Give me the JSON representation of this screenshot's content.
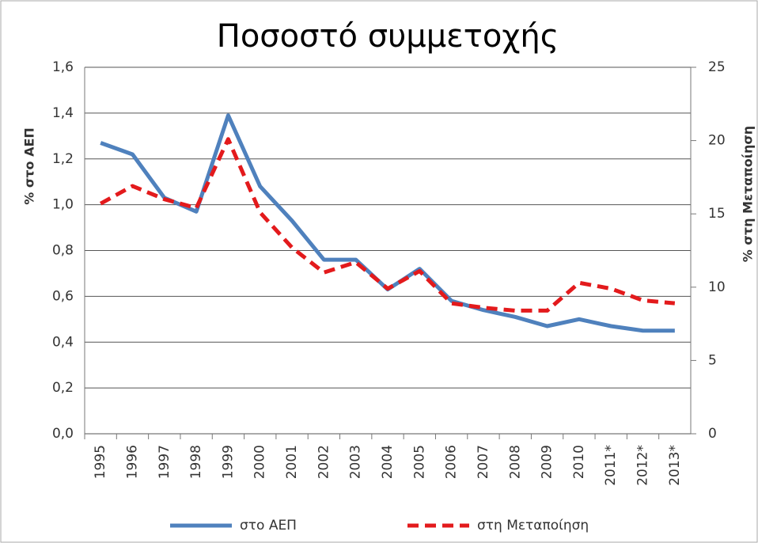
{
  "chart_data": {
    "type": "line",
    "title": "Ποσοστό συμμετοχής",
    "categories": [
      "1995",
      "1996",
      "1997",
      "1998",
      "1999",
      "2000",
      "2001",
      "2002",
      "2003",
      "2004",
      "2005",
      "2006",
      "2007",
      "2008",
      "2009",
      "2010",
      "2011*",
      "2012*",
      "2013*"
    ],
    "series": [
      {
        "name": "στο ΑΕΠ",
        "color": "#4f81bd",
        "axis": "y",
        "dash": false,
        "values": [
          1.27,
          1.22,
          1.03,
          0.97,
          1.39,
          1.08,
          0.93,
          0.76,
          0.76,
          0.63,
          0.72,
          0.58,
          0.54,
          0.51,
          0.47,
          0.5,
          0.47,
          0.45,
          0.45
        ]
      },
      {
        "name": "στη Μεταποίηση",
        "color": "#e31a1c",
        "axis": "y2",
        "dash": true,
        "values": [
          15.7,
          16.9,
          16.0,
          15.4,
          20.1,
          15.1,
          12.7,
          11.0,
          11.7,
          9.9,
          11.1,
          8.9,
          8.6,
          8.4,
          8.4,
          10.3,
          9.9,
          9.1,
          8.9
        ]
      }
    ],
    "y_label": "% στο ΑΕΠ",
    "y2_label": "% στη Μεταποίηση",
    "ylim": [
      0,
      1.6
    ],
    "yticks": [
      {
        "value": 0,
        "label": "0,0"
      },
      {
        "value": 0.2,
        "label": "0,2"
      },
      {
        "value": 0.4,
        "label": "0,4"
      },
      {
        "value": 0.6,
        "label": "0,6"
      },
      {
        "value": 0.8,
        "label": "0,8"
      },
      {
        "value": 1.0,
        "label": "1,0"
      },
      {
        "value": 1.2,
        "label": "1,2"
      },
      {
        "value": 1.4,
        "label": "1,4"
      },
      {
        "value": 1.6,
        "label": "1,6"
      }
    ],
    "y2lim": [
      0,
      25
    ],
    "y2ticks": [
      0,
      5,
      10,
      15,
      20,
      25
    ],
    "grid": true,
    "legend": "bottom"
  }
}
